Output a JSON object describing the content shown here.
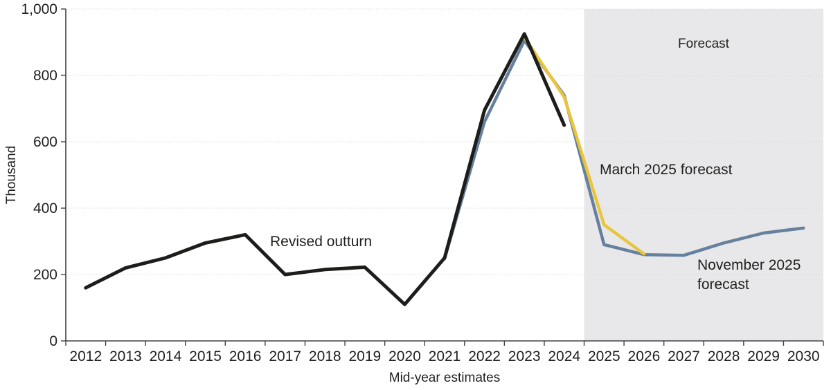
{
  "chart_data": {
    "type": "line",
    "title": "",
    "xlabel": "Mid-year estimates",
    "ylabel": "Thousand",
    "ylim": [
      0,
      1000
    ],
    "yticks": [
      0,
      200,
      400,
      600,
      800,
      1000
    ],
    "ytick_labels": [
      "0",
      "200",
      "400",
      "600",
      "800",
      "1,000"
    ],
    "x_years": [
      2012,
      2013,
      2014,
      2015,
      2016,
      2017,
      2018,
      2019,
      2020,
      2021,
      2022,
      2023,
      2024,
      2025,
      2026,
      2027,
      2028,
      2029,
      2030
    ],
    "x_tick_labels": [
      "2012",
      "2013",
      "2014",
      "2015",
      "2016",
      "2017",
      "2018",
      "2019",
      "2020",
      "2021",
      "2022",
      "2023",
      "2024",
      "2025",
      "2026",
      "2027",
      "2028",
      "2029",
      "2030"
    ],
    "grid": true,
    "legend_position": "inline-annotations",
    "series": [
      {
        "name": "November 2025 forecast",
        "color": "#66819d",
        "x": [
          2021,
          2022,
          2023,
          2024,
          2025,
          2026,
          2027,
          2028,
          2029,
          2030
        ],
        "values": [
          248,
          660,
          905,
          740,
          290,
          260,
          258,
          295,
          325,
          340
        ]
      },
      {
        "name": "March 2025 forecast",
        "color": "#e9c53b",
        "x": [
          2023,
          2024,
          2025,
          2026
        ],
        "values": [
          915,
          735,
          350,
          262
        ]
      },
      {
        "name": "Revised outturn",
        "color": "#1d1d1b",
        "x": [
          2012,
          2013,
          2014,
          2015,
          2016,
          2017,
          2018,
          2019,
          2020,
          2021,
          2022,
          2023,
          2024
        ],
        "values": [
          160,
          220,
          250,
          295,
          320,
          200,
          215,
          222,
          110,
          250,
          695,
          925,
          650
        ]
      }
    ],
    "forecast_region": {
      "label": "Forecast",
      "start_year_boundary": 2024.5,
      "end_year_boundary": 2030.5,
      "fill": "#e8e8ea",
      "label_color": "#1f1f1d"
    },
    "annotations": {
      "revised_outturn": "Revised outturn",
      "march_2025": "March 2025 forecast",
      "march_2025_color": "#c2a033",
      "november_2025_line1": "November 2025",
      "november_2025_line2": "forecast",
      "november_2025_color": "#1f1f1d"
    }
  }
}
